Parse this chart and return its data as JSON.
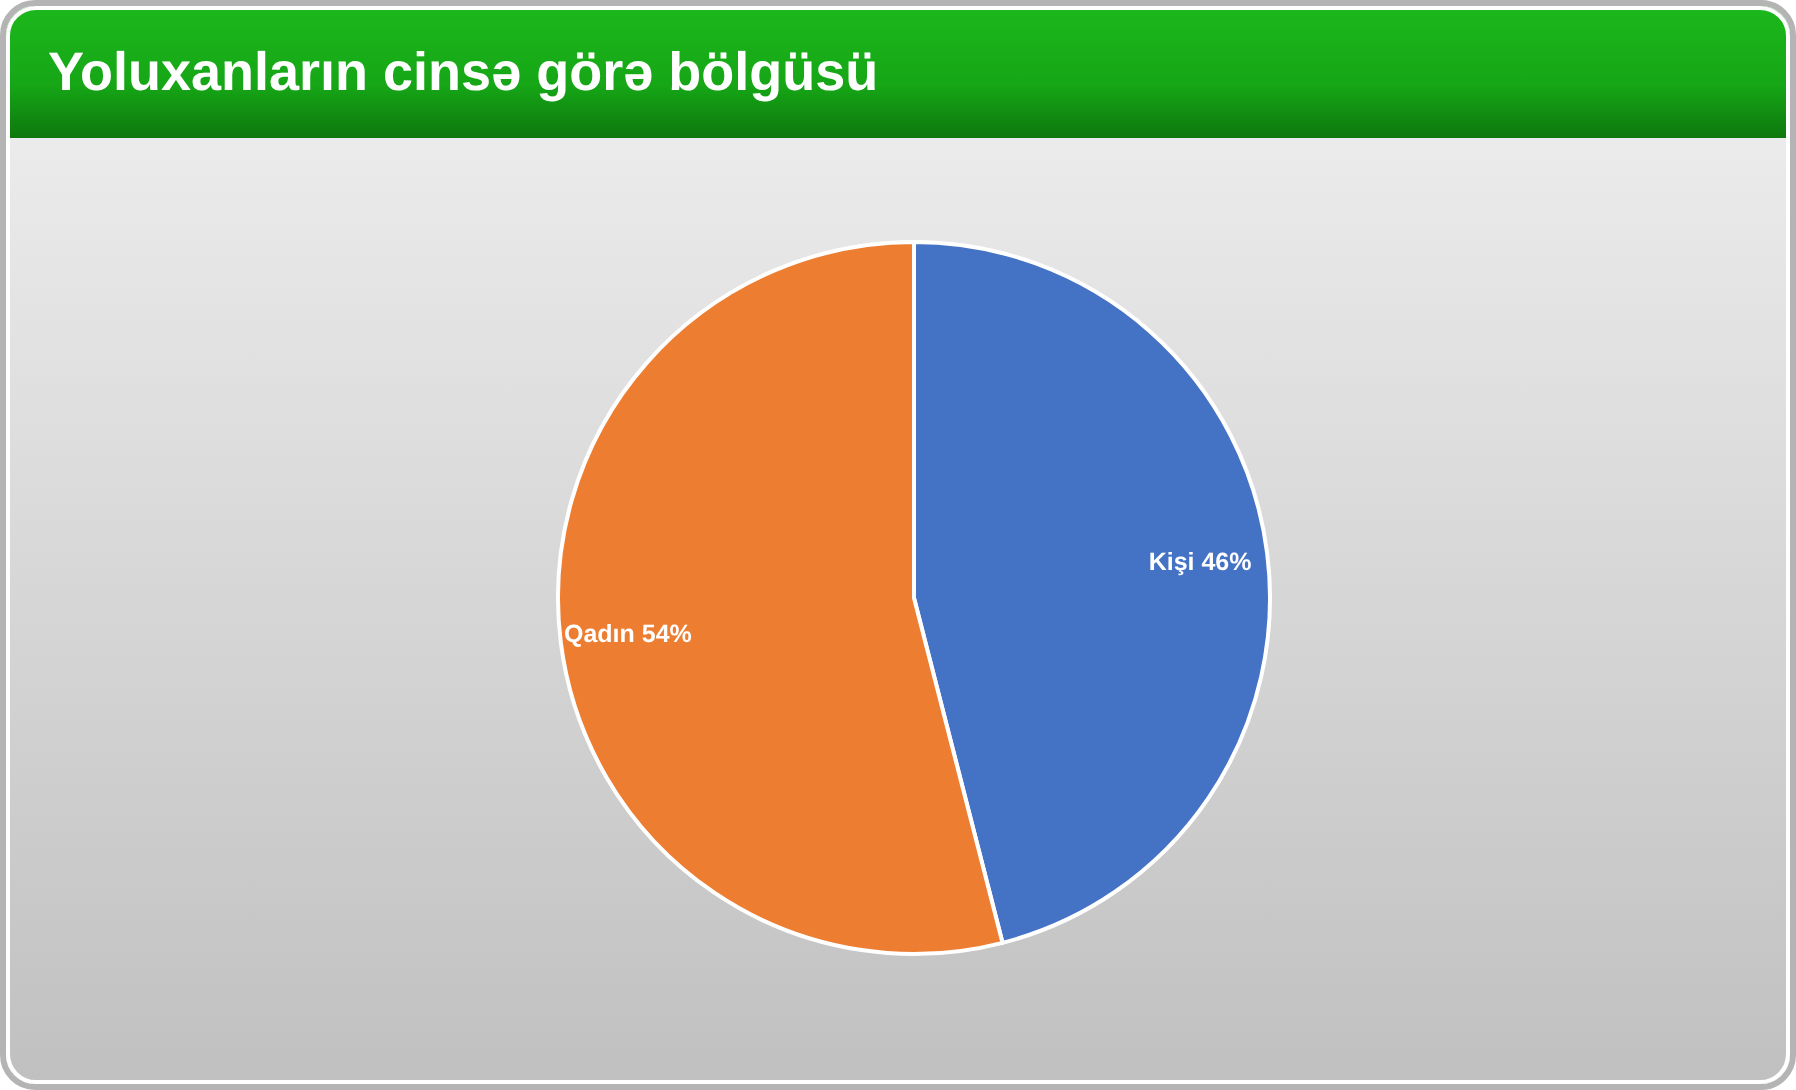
{
  "chart_data": {
    "type": "pie",
    "title": "Yoluxanların cinsə görə bölgüsü",
    "categories": [
      "Kişi",
      "Qadın"
    ],
    "values": [
      46,
      54
    ],
    "colors": [
      "#4472c4",
      "#ed7d31"
    ],
    "value_labels": [
      "46%",
      "54%"
    ]
  }
}
